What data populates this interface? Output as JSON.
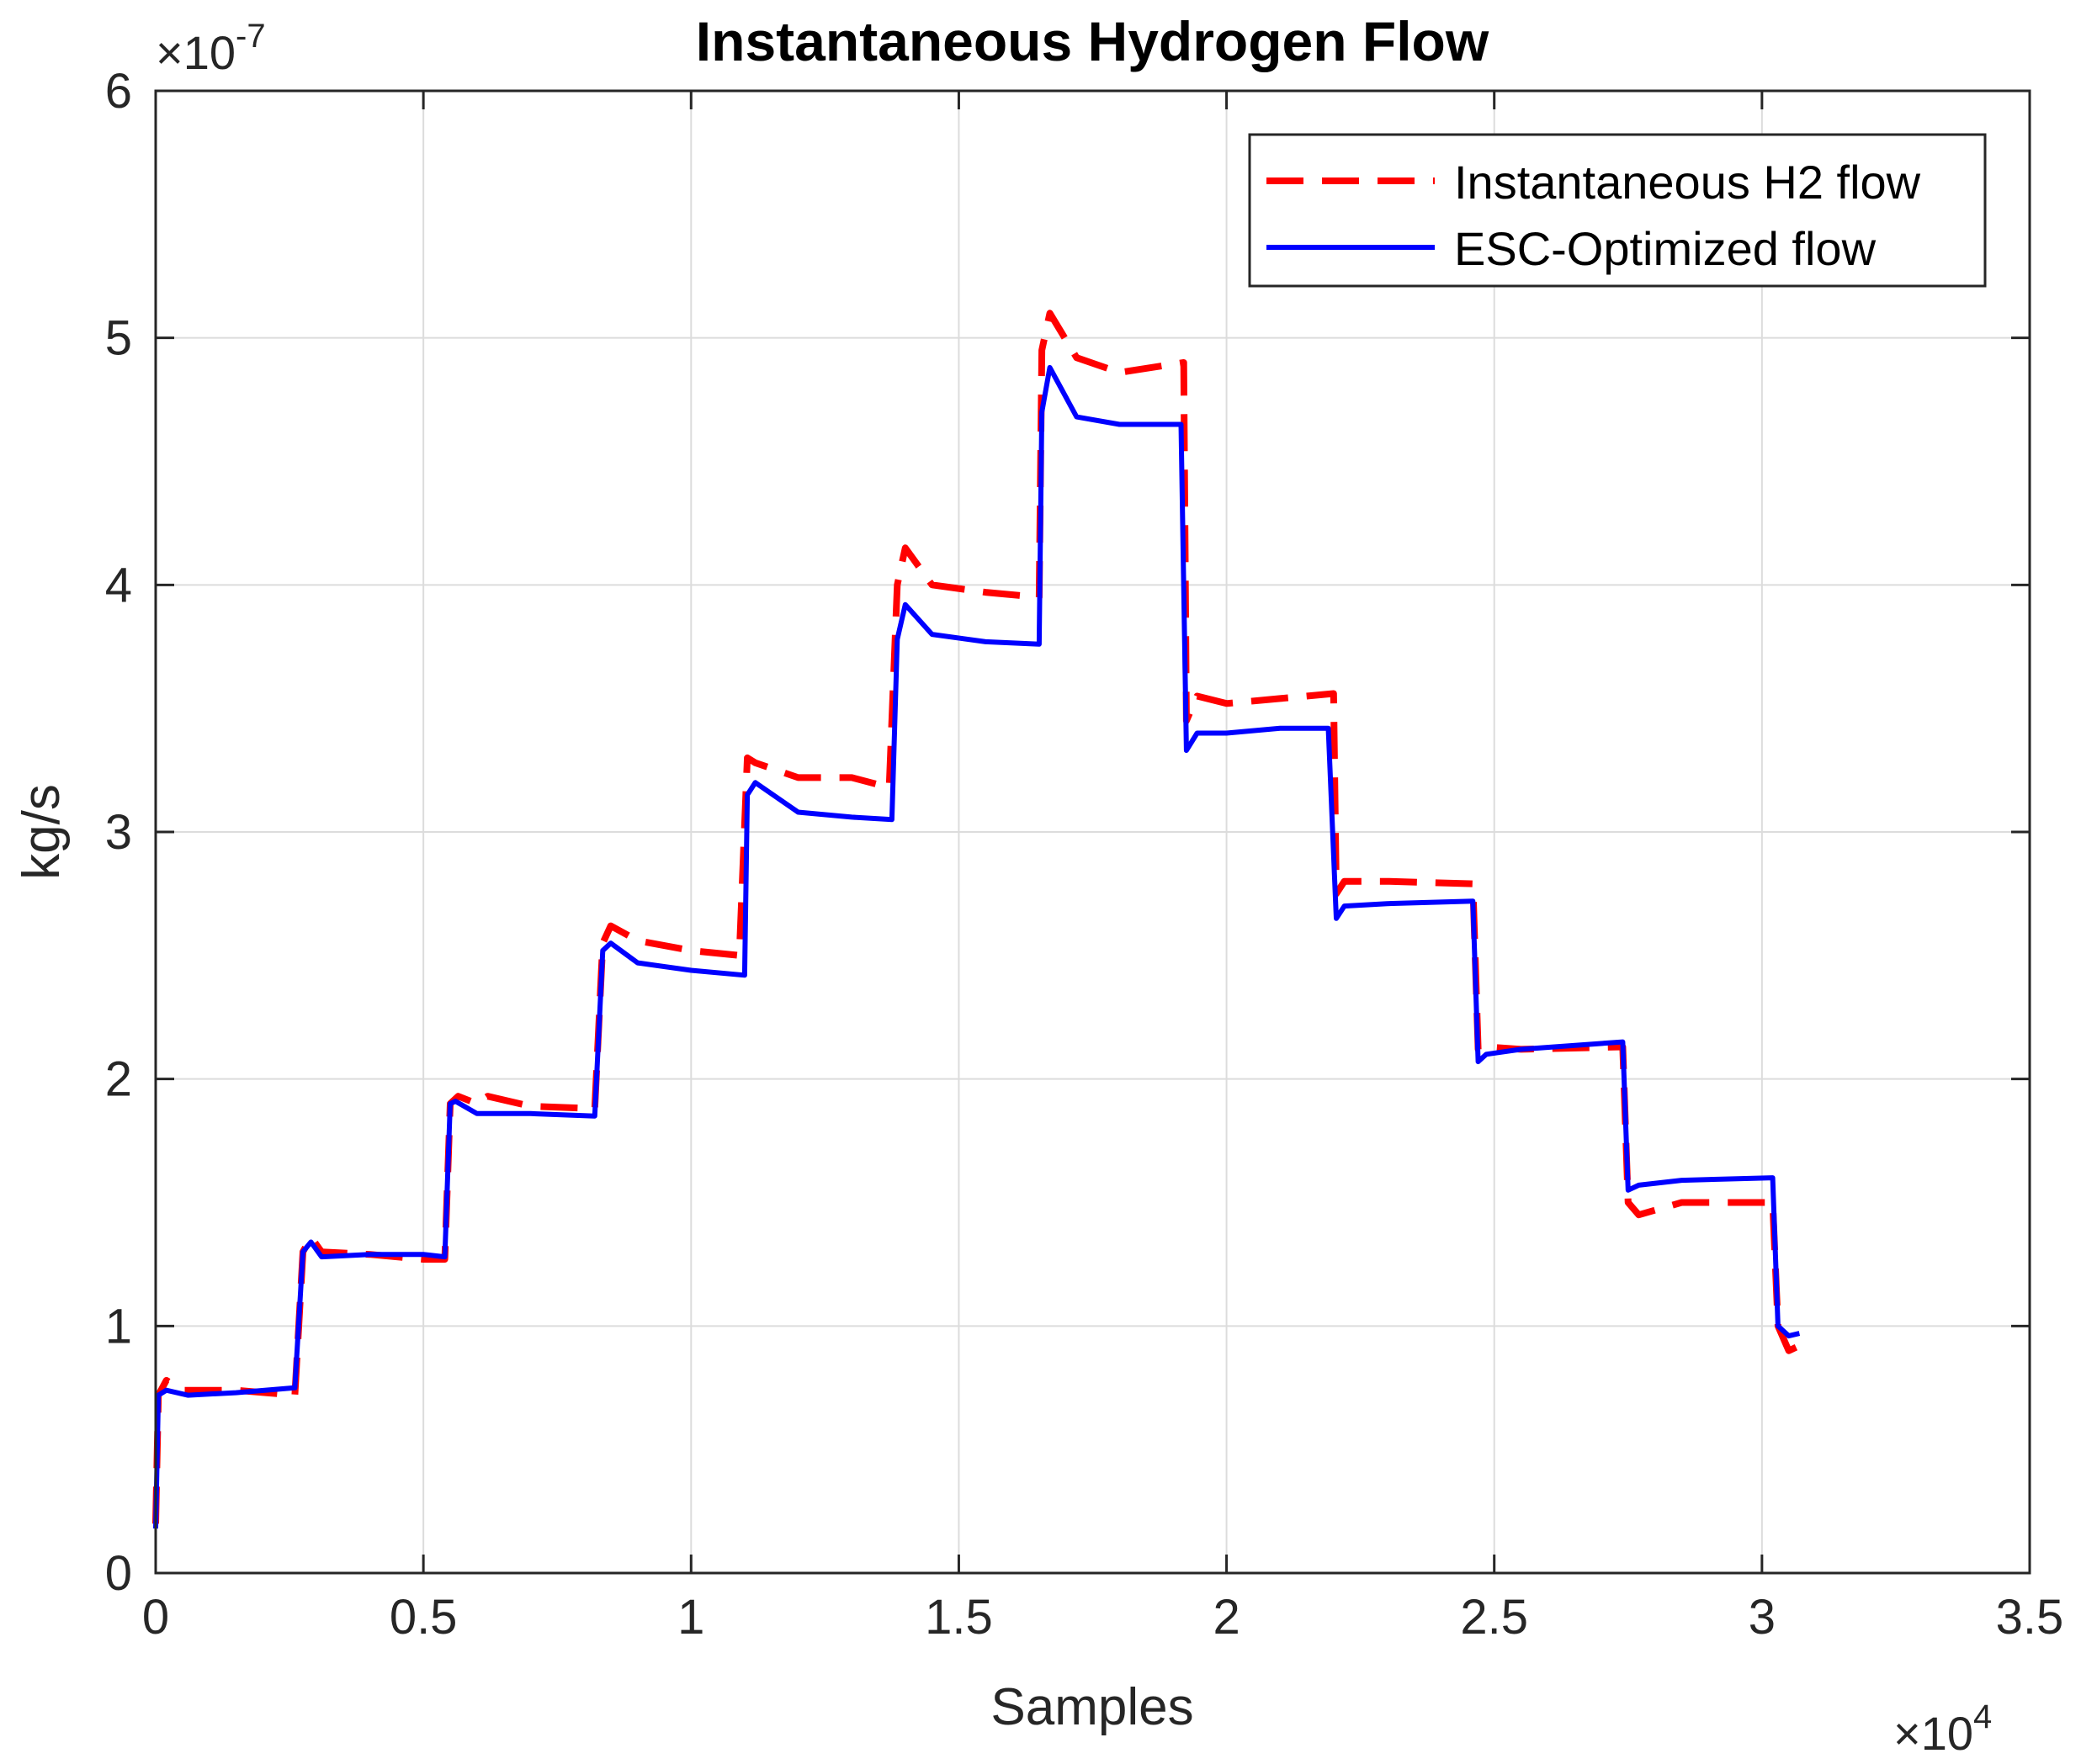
{
  "chart_data": {
    "type": "line",
    "title": "Instantaneous Hydrogen Flow",
    "xlabel": "Samples",
    "ylabel": "kg/s",
    "x_exponent_label": "×10",
    "x_exponent_power": "4",
    "y_exponent_label": "×10",
    "y_exponent_power": "-7",
    "xlim": [
      0,
      3.5
    ],
    "ylim": [
      0,
      6
    ],
    "xticks": [
      0,
      0.5,
      1,
      1.5,
      2,
      2.5,
      3,
      3.5
    ],
    "yticks": [
      0,
      1,
      2,
      3,
      4,
      5,
      6
    ],
    "xtick_labels": [
      "0",
      "0.5",
      "1",
      "1.5",
      "2",
      "2.5",
      "3",
      "3.5"
    ],
    "ytick_labels": [
      "0",
      "1",
      "2",
      "3",
      "4",
      "5",
      "6"
    ],
    "grid": true,
    "legend_position": "top-right",
    "series": [
      {
        "name": "Instantaneous H2 flow",
        "color": "#ff0000",
        "style": "dashed",
        "x": [
          0,
          0.005,
          0.02,
          0.05,
          0.15,
          0.26,
          0.275,
          0.29,
          0.31,
          0.4,
          0.5,
          0.54,
          0.55,
          0.565,
          0.6,
          0.62,
          0.7,
          0.82,
          0.835,
          0.85,
          0.9,
          1.0,
          1.09,
          1.105,
          1.12,
          1.2,
          1.3,
          1.37,
          1.385,
          1.4,
          1.45,
          1.55,
          1.65,
          1.655,
          1.67,
          1.72,
          1.8,
          1.92,
          1.925,
          1.945,
          2.0,
          2.1,
          2.2,
          2.205,
          2.22,
          2.3,
          2.46,
          2.47,
          2.485,
          2.55,
          2.74,
          2.75,
          2.77,
          2.85,
          3.02,
          3.03,
          3.05,
          3.07
        ],
        "y": [
          0.2,
          0.72,
          0.78,
          0.74,
          0.74,
          0.72,
          1.3,
          1.36,
          1.3,
          1.29,
          1.27,
          1.27,
          1.9,
          1.93,
          1.9,
          1.93,
          1.89,
          1.88,
          2.55,
          2.62,
          2.56,
          2.52,
          2.5,
          3.3,
          3.28,
          3.22,
          3.22,
          3.18,
          4.0,
          4.15,
          4.0,
          3.97,
          3.95,
          4.95,
          5.1,
          4.92,
          4.86,
          4.9,
          3.45,
          3.55,
          3.52,
          3.54,
          3.56,
          2.75,
          2.8,
          2.8,
          2.79,
          2.12,
          2.13,
          2.12,
          2.13,
          1.5,
          1.45,
          1.5,
          1.5,
          1.0,
          0.9,
          0.92
        ]
      },
      {
        "name": "ESC-Optimized flow",
        "color": "#0000ff",
        "style": "solid",
        "x": [
          0,
          0.005,
          0.02,
          0.06,
          0.15,
          0.26,
          0.275,
          0.29,
          0.31,
          0.4,
          0.5,
          0.54,
          0.55,
          0.56,
          0.6,
          0.7,
          0.82,
          0.835,
          0.85,
          0.9,
          1.0,
          1.1,
          1.105,
          1.12,
          1.2,
          1.3,
          1.375,
          1.385,
          1.4,
          1.45,
          1.55,
          1.65,
          1.655,
          1.67,
          1.72,
          1.8,
          1.915,
          1.925,
          1.945,
          2.0,
          2.1,
          2.19,
          2.205,
          2.22,
          2.3,
          2.46,
          2.47,
          2.485,
          2.55,
          2.74,
          2.75,
          2.77,
          2.85,
          3.02,
          3.03,
          3.05,
          3.07
        ],
        "y": [
          0.18,
          0.72,
          0.74,
          0.72,
          0.73,
          0.75,
          1.3,
          1.34,
          1.28,
          1.29,
          1.29,
          1.28,
          1.9,
          1.91,
          1.86,
          1.86,
          1.85,
          2.52,
          2.55,
          2.47,
          2.44,
          2.42,
          3.15,
          3.2,
          3.08,
          3.06,
          3.05,
          3.78,
          3.92,
          3.8,
          3.77,
          3.76,
          4.7,
          4.88,
          4.68,
          4.65,
          4.65,
          3.33,
          3.4,
          3.4,
          3.42,
          3.42,
          2.65,
          2.7,
          2.71,
          2.72,
          2.07,
          2.1,
          2.12,
          2.15,
          1.55,
          1.57,
          1.59,
          1.6,
          1.0,
          0.96,
          0.97
        ]
      }
    ]
  }
}
